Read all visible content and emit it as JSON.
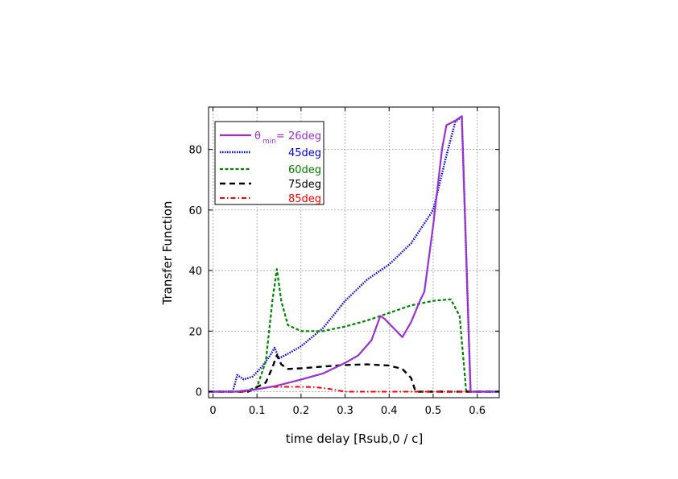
{
  "chart_data": {
    "type": "line",
    "xlabel": "time delay [Rsub,0 / c]",
    "ylabel": "Transfer Function",
    "xlim": [
      -0.01,
      0.65
    ],
    "ylim": [
      -2,
      94
    ],
    "xticks": [
      "0",
      "0.1",
      "0.2",
      "0.3",
      "0.4",
      "0.5",
      "0.6"
    ],
    "yticks": [
      "0",
      "20",
      "40",
      "60",
      "80"
    ],
    "grid": true,
    "legend_position": "top-left",
    "legend_prefix": "θ",
    "legend_prefix_sub": "min",
    "series": [
      {
        "name": "= 26deg",
        "color": "#9a32cd",
        "style": "solid",
        "x": [
          -0.01,
          0.05,
          0.1,
          0.14,
          0.16,
          0.2,
          0.25,
          0.3,
          0.33,
          0.36,
          0.38,
          0.39,
          0.41,
          0.43,
          0.45,
          0.47,
          0.48,
          0.5,
          0.52,
          0.53,
          0.55,
          0.565,
          0.585,
          0.65
        ],
        "y": [
          0,
          0,
          0.8,
          1.8,
          2.5,
          4,
          6,
          9.5,
          12,
          17,
          25,
          24,
          21,
          18,
          23,
          30,
          33,
          55,
          80,
          88,
          89.5,
          91,
          0,
          0
        ]
      },
      {
        "name": "45deg",
        "color": "#0000cd",
        "style": "dotted",
        "x": [
          -0.01,
          0.045,
          0.055,
          0.07,
          0.09,
          0.11,
          0.13,
          0.14,
          0.15,
          0.17,
          0.2,
          0.25,
          0.3,
          0.35,
          0.4,
          0.45,
          0.5,
          0.53,
          0.55,
          0.565,
          0.585,
          0.65
        ],
        "y": [
          0,
          0,
          5.5,
          4,
          5,
          8,
          12,
          14.5,
          11,
          12.5,
          15,
          21,
          30,
          37,
          42,
          49,
          60,
          78,
          89,
          91,
          0,
          0
        ]
      },
      {
        "name": "60deg",
        "color": "#008000",
        "style": "dashed",
        "x": [
          -0.01,
          0.07,
          0.1,
          0.12,
          0.135,
          0.145,
          0.155,
          0.17,
          0.2,
          0.25,
          0.3,
          0.35,
          0.4,
          0.45,
          0.5,
          0.54,
          0.56,
          0.575,
          0.65
        ],
        "y": [
          0,
          0,
          1.5,
          10,
          30,
          40.5,
          30,
          22,
          20,
          20,
          21.5,
          23.5,
          26,
          28.5,
          30,
          30.5,
          25,
          0,
          0
        ]
      },
      {
        "name": "75deg",
        "color": "#000000",
        "style": "longdash",
        "x": [
          -0.01,
          0.08,
          0.12,
          0.135,
          0.145,
          0.155,
          0.17,
          0.2,
          0.25,
          0.3,
          0.35,
          0.4,
          0.43,
          0.45,
          0.46,
          0.47,
          0.65
        ],
        "y": [
          0,
          0,
          3,
          8,
          12,
          9,
          7.5,
          7.7,
          8.3,
          8.8,
          9,
          8.6,
          7.5,
          4.5,
          0,
          0,
          0
        ]
      },
      {
        "name": "85deg",
        "color": "#ff0000",
        "style": "dashdot",
        "x": [
          -0.01,
          0.07,
          0.1,
          0.13,
          0.15,
          0.2,
          0.23,
          0.26,
          0.3,
          0.65
        ],
        "y": [
          0,
          0,
          0.8,
          1.5,
          1.6,
          1.6,
          1.5,
          1.0,
          0,
          0
        ]
      }
    ]
  }
}
